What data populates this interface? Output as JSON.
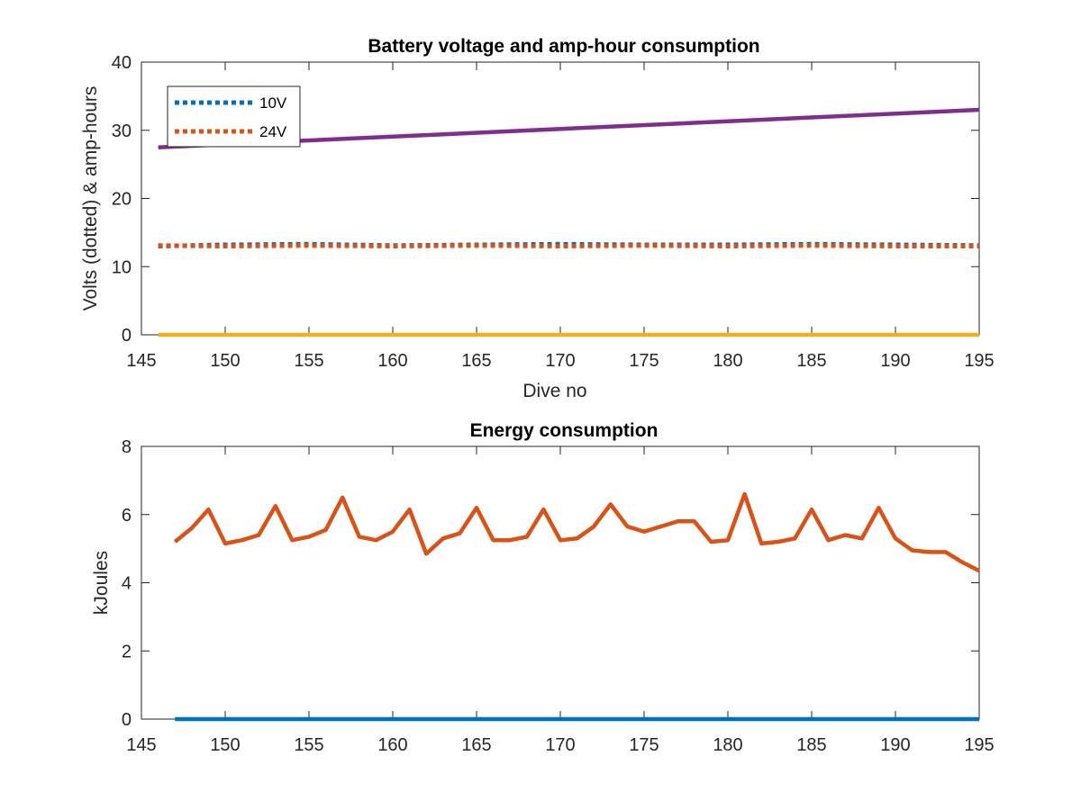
{
  "chart_data": [
    {
      "type": "line",
      "title": "Battery voltage and amp-hour consumption",
      "xlabel": "Dive no",
      "ylabel": "Volts (dotted) & amp-hours",
      "xlim": [
        145,
        195
      ],
      "ylim": [
        0,
        40
      ],
      "xticks": [
        "145",
        "150",
        "155",
        "160",
        "165",
        "170",
        "175",
        "180",
        "185",
        "190",
        "195"
      ],
      "yticks": [
        "0",
        "10",
        "20",
        "30",
        "40"
      ],
      "grid": false,
      "legend_position": "top-left",
      "colors": {
        "10V": "#0072BD",
        "24V": "#D95319",
        "amp_hours_a": "#7E2F8E",
        "amp_hours_b": "#EDB120"
      },
      "series": [
        {
          "name": "10V",
          "style": "dotted",
          "x": [
            146,
            150,
            155,
            160,
            165,
            170,
            175,
            180,
            185,
            190,
            195
          ],
          "values": [
            13.0,
            13.2,
            13.3,
            13.1,
            13.2,
            13.3,
            13.2,
            13.2,
            13.3,
            13.2,
            13.1
          ]
        },
        {
          "name": "24V",
          "style": "dotted",
          "x": [
            146,
            150,
            155,
            160,
            165,
            170,
            175,
            180,
            185,
            190,
            195
          ],
          "values": [
            13.1,
            13.0,
            13.1,
            13.0,
            13.1,
            13.0,
            13.1,
            13.0,
            13.1,
            13.0,
            13.0
          ]
        },
        {
          "style": "solid",
          "x": [
            146,
            195
          ],
          "values": [
            27.5,
            33.0
          ]
        },
        {
          "style": "solid",
          "x": [
            146,
            195
          ],
          "values": [
            0,
            0
          ]
        }
      ]
    },
    {
      "type": "line",
      "title": "Energy consumption",
      "xlabel": "",
      "ylabel": "kJoules",
      "xlim": [
        145,
        195
      ],
      "ylim": [
        0,
        8
      ],
      "xticks": [
        "145",
        "150",
        "155",
        "160",
        "165",
        "170",
        "175",
        "180",
        "185",
        "190",
        "195"
      ],
      "yticks": [
        "0",
        "2",
        "4",
        "6",
        "8"
      ],
      "grid": false,
      "colors": {
        "energy": "#D95319",
        "baseline": "#0072BD"
      },
      "series": [
        {
          "style": "solid",
          "x": [
            147,
            148,
            149,
            150,
            151,
            152,
            153,
            154,
            155,
            156,
            157,
            158,
            159,
            160,
            161,
            162,
            163,
            164,
            165,
            166,
            167,
            168,
            169,
            170,
            171,
            172,
            173,
            174,
            175,
            176,
            177,
            178,
            179,
            180,
            181,
            182,
            183,
            184,
            185,
            186,
            187,
            188,
            189,
            190,
            191,
            192,
            193,
            194,
            195
          ],
          "values": [
            5.2,
            5.6,
            6.15,
            5.15,
            5.25,
            5.4,
            6.25,
            5.25,
            5.35,
            5.55,
            6.5,
            5.35,
            5.25,
            5.5,
            6.15,
            4.85,
            5.3,
            5.45,
            6.2,
            5.25,
            5.25,
            5.35,
            6.15,
            5.25,
            5.3,
            5.65,
            6.3,
            5.65,
            5.5,
            5.65,
            5.8,
            5.8,
            5.2,
            5.25,
            6.6,
            5.15,
            5.2,
            5.3,
            6.15,
            5.25,
            5.4,
            5.3,
            6.2,
            5.3,
            4.95,
            4.9,
            4.9,
            4.6,
            4.35
          ]
        },
        {
          "style": "solid",
          "x": [
            147,
            195
          ],
          "values": [
            0,
            0
          ]
        }
      ]
    }
  ]
}
